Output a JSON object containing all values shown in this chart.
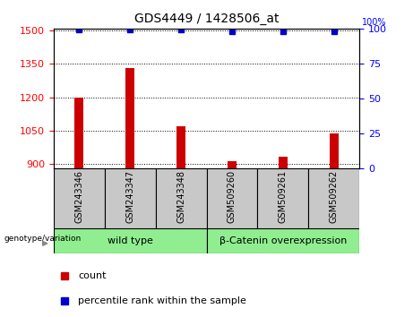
{
  "title": "GDS4449 / 1428506_at",
  "categories": [
    "GSM243346",
    "GSM243347",
    "GSM243348",
    "GSM509260",
    "GSM509261",
    "GSM509262"
  ],
  "bar_values": [
    1197,
    1330,
    1068,
    910,
    930,
    1035
  ],
  "percentile_values": [
    99,
    99,
    99,
    98,
    98,
    98
  ],
  "bar_color": "#cc0000",
  "dot_color": "#0000cc",
  "ylim_left": [
    880,
    1510
  ],
  "ylim_right": [
    0,
    100
  ],
  "yticks_left": [
    900,
    1050,
    1200,
    1350,
    1500
  ],
  "yticks_right": [
    0,
    25,
    50,
    75,
    100
  ],
  "group1_label": "wild type",
  "group2_label": "β-Catenin overexpression",
  "group_color": "#90ee90",
  "genotype_label": "genotype/variation",
  "legend_count_label": "count",
  "legend_pct_label": "percentile rank within the sample",
  "bar_color_legend": "#cc0000",
  "dot_color_legend": "#0000cc",
  "bg_color": "#ffffff",
  "tick_bg_color": "#c8c8c8",
  "bar_width": 0.18
}
